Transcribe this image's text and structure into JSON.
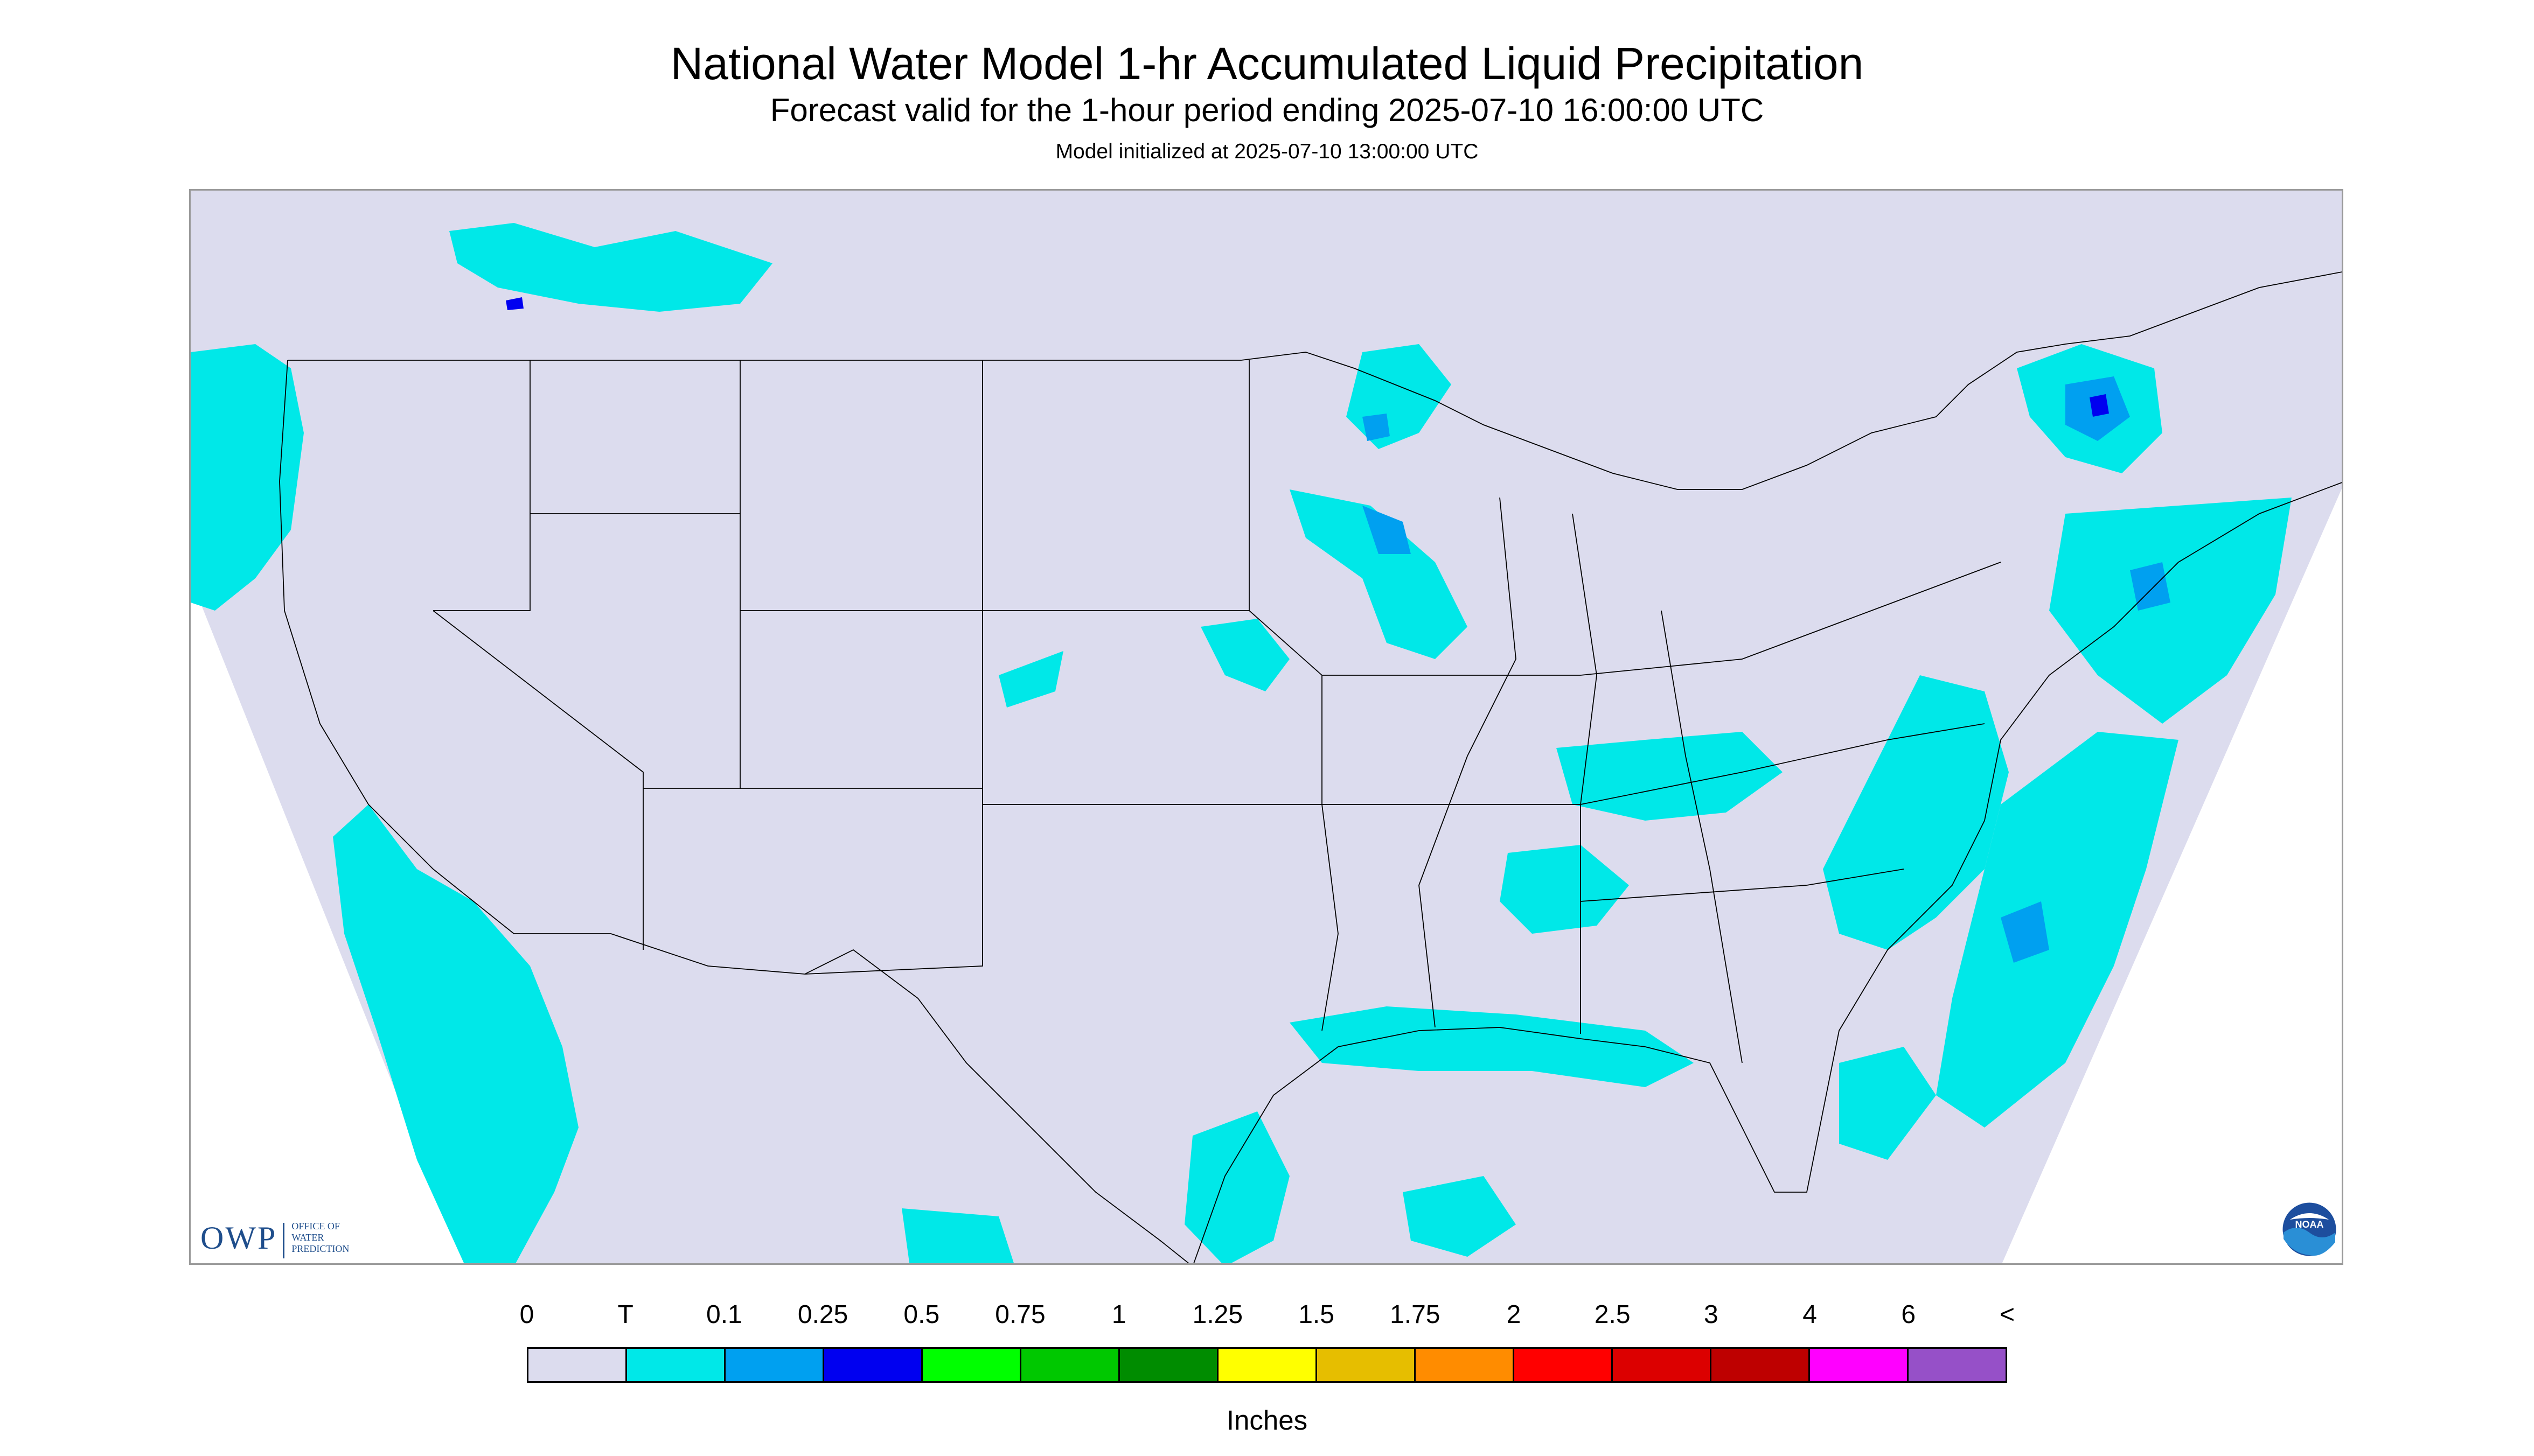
{
  "title": "National Water Model 1-hr Accumulated Liquid Precipitation",
  "subtitle": "Forecast valid for the 1-hour period ending 2025-07-10 16:00:00 UTC",
  "model_init": "Model initialized at 2025-07-10 13:00:00 UTC",
  "map": {
    "region": "Contiguous United States",
    "background_color": "#dcdcee",
    "boundary_color": "#000000"
  },
  "legend": {
    "units": "Inches",
    "labels": [
      "0",
      "T",
      "0.1",
      "0.25",
      "0.5",
      "0.75",
      "1",
      "1.25",
      "1.5",
      "1.75",
      "2",
      "2.5",
      "3",
      "4",
      "6",
      "<"
    ],
    "colors": [
      "#dcdcee",
      "#00e8e8",
      "#00a0f0",
      "#0000f0",
      "#00ff00",
      "#00c800",
      "#008c00",
      "#ffff00",
      "#e6be00",
      "#ff8c00",
      "#ff0000",
      "#dc0000",
      "#be0000",
      "#ff00ff",
      "#9650c8"
    ]
  },
  "logos": {
    "owp_text": "OWP",
    "owp_sub": [
      "Office of",
      "Water",
      "Prediction"
    ],
    "noaa_text": "NOAA",
    "noaa_icon": "noaa-logo-icon"
  }
}
